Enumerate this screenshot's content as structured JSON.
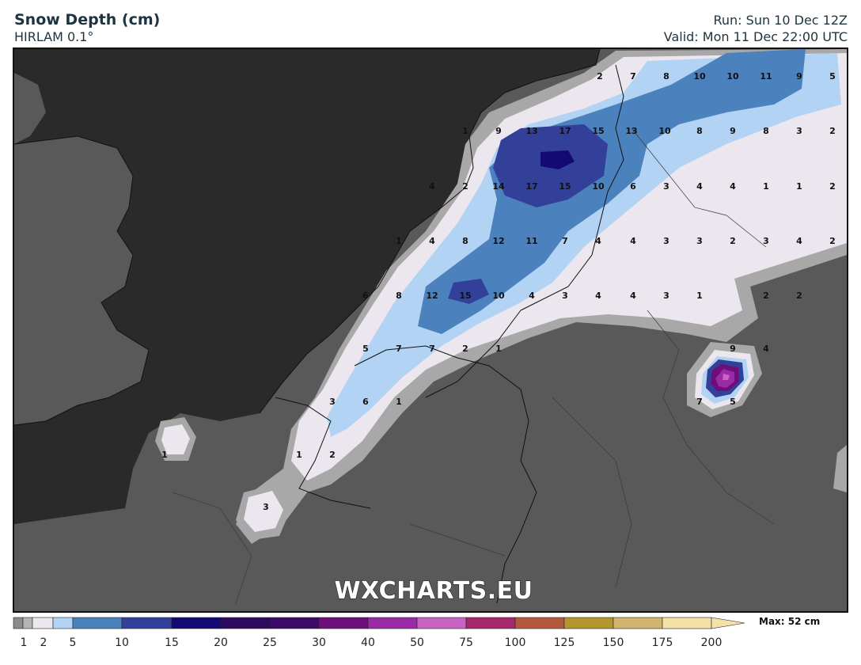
{
  "header": {
    "title": "Snow Depth (cm)",
    "model": "HIRLAM 0.1°",
    "run": "Run: Sun 10 Dec 12Z",
    "valid": "Valid: Mon 11 Dec 22:00 UTC"
  },
  "watermark": "WXCHARTS.EU",
  "colors": {
    "sea": "#2a2a2a",
    "land": "#595959",
    "cat_1": "#a8a8a8",
    "cat_2": "#ece6ee",
    "cat_5": "#b3d3f4",
    "cat_10": "#4b82be",
    "cat_15": "#33409a",
    "cat_20": "#140a74",
    "cat_30": "#6e0e7a",
    "cat_40": "#9b2aa6",
    "cat_50": "#c864c4"
  },
  "legend": {
    "ticks": [
      "1",
      "2",
      "5",
      "10",
      "15",
      "20",
      "25",
      "30",
      "40",
      "50",
      "75",
      "100",
      "125",
      "150",
      "175",
      "200"
    ],
    "swatches": [
      "#8c8c8c",
      "#b5b5b5",
      "#ece6ee",
      "#b3d3f4",
      "#4b82be",
      "#33409a",
      "#140a74",
      "#2e0a5e",
      "#3e0a6a",
      "#6e0e7a",
      "#9b2aa6",
      "#c864c4",
      "#a8286e",
      "#b45a3c",
      "#b4962e",
      "#d2b46e",
      "#f5e0a8"
    ],
    "max_label": "Max: 52 cm"
  },
  "values": [
    "2",
    "7",
    "8",
    "10",
    "10",
    "11",
    "9",
    "5",
    "1",
    "9",
    "13",
    "17",
    "15",
    "13",
    "10",
    "8",
    "9",
    "8",
    "3",
    "2",
    "4",
    "2",
    "14",
    "17",
    "15",
    "10",
    "6",
    "3",
    "4",
    "4",
    "1",
    "1",
    "2",
    "1",
    "4",
    "8",
    "12",
    "11",
    "7",
    "4",
    "4",
    "3",
    "3",
    "2",
    "3",
    "4",
    "2",
    "6",
    "8",
    "12",
    "15",
    "10",
    "4",
    "3",
    "4",
    "4",
    "3",
    "1",
    "2",
    "2",
    "5",
    "7",
    "7",
    "2",
    "1",
    "9",
    "4",
    "3",
    "6",
    "1",
    "7",
    "5",
    "1",
    "1",
    "2",
    "3"
  ]
}
